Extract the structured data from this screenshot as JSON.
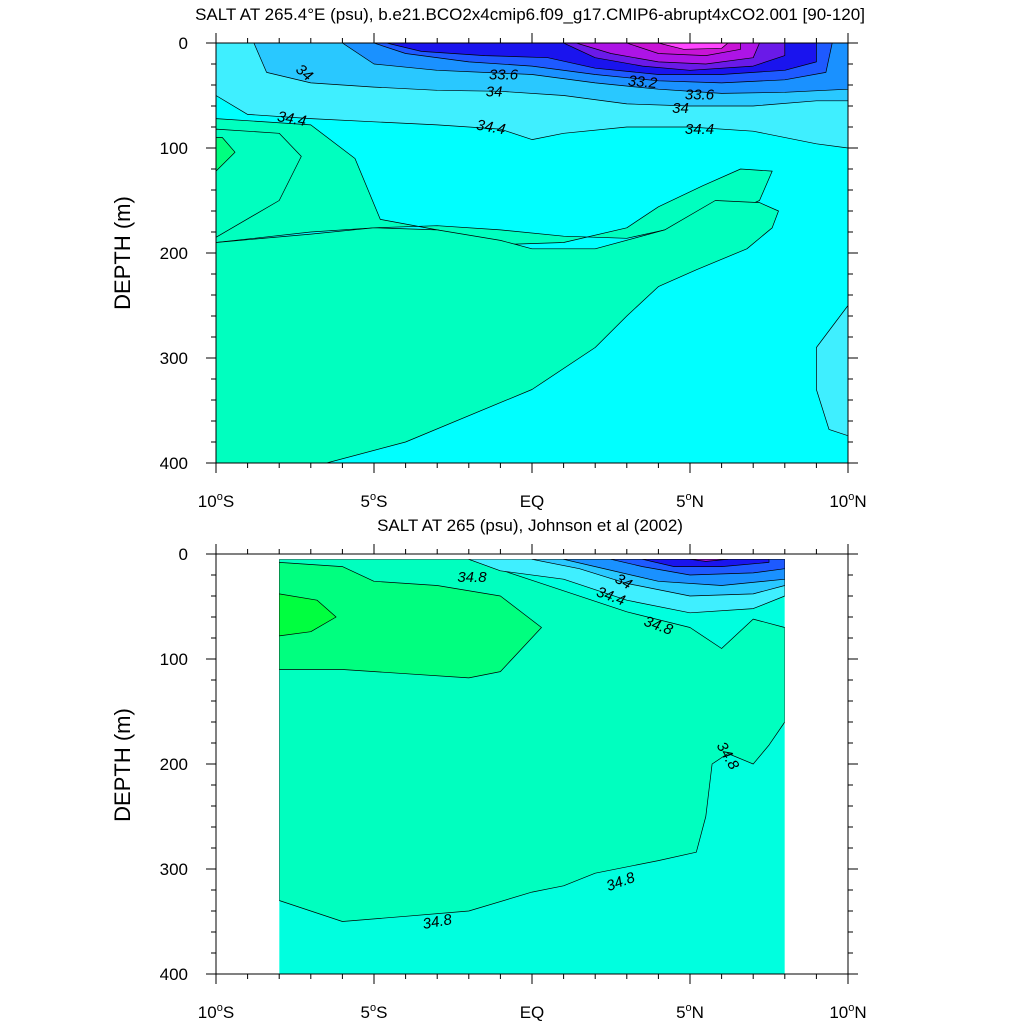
{
  "chart_data": [
    {
      "type": "contour",
      "title": "SALT AT 265.4°E (psu), b.e21.BCO2x4cmip6.f09_g17.CMIP6-abrupt4xCO2.001 [90-120]",
      "xlabel": "",
      "ylabel": "DEPTH (m)",
      "xlim": [
        -10,
        10
      ],
      "ylim": [
        400,
        0
      ],
      "x_ticks": [
        {
          "value": -10,
          "label": "10°S"
        },
        {
          "value": -5,
          "label": "5°S"
        },
        {
          "value": 0,
          "label": "EQ"
        },
        {
          "value": 5,
          "label": "5°N"
        },
        {
          "value": 10,
          "label": "10°N"
        }
      ],
      "y_ticks": [
        {
          "value": 0,
          "label": "0"
        },
        {
          "value": 100,
          "label": "100"
        },
        {
          "value": 200,
          "label": "200"
        },
        {
          "value": 300,
          "label": "300"
        },
        {
          "value": 400,
          "label": "400"
        }
      ],
      "background": "#00ffff",
      "regions": [
        {
          "color": "#3fefff",
          "points": [
            [
              -10,
              0
            ],
            [
              -10,
              50
            ],
            [
              -9,
              68
            ],
            [
              -7,
              72
            ],
            [
              -5,
              75
            ],
            [
              -3,
              78
            ],
            [
              -1,
              82
            ],
            [
              0,
              92
            ],
            [
              1,
              86
            ],
            [
              3,
              80
            ],
            [
              5,
              80
            ],
            [
              7,
              84
            ],
            [
              9,
              96
            ],
            [
              10,
              100
            ],
            [
              10,
              0
            ]
          ]
        },
        {
          "color": "#29c8ff",
          "points": [
            [
              -8.8,
              0
            ],
            [
              -8.4,
              28
            ],
            [
              -7,
              38
            ],
            [
              -5,
              42
            ],
            [
              -3,
              45
            ],
            [
              -1,
              46
            ],
            [
              1,
              50
            ],
            [
              3,
              58
            ],
            [
              5,
              60
            ],
            [
              7,
              60
            ],
            [
              9,
              55
            ],
            [
              10,
              55
            ],
            [
              10,
              0
            ]
          ]
        },
        {
          "color": "#1a91ff",
          "points": [
            [
              -6,
              0
            ],
            [
              -5,
              20
            ],
            [
              -3,
              26
            ],
            [
              0,
              30
            ],
            [
              2,
              38
            ],
            [
              4,
              44
            ],
            [
              6,
              48
            ],
            [
              8,
              47
            ],
            [
              10,
              44
            ],
            [
              10,
              0
            ]
          ]
        },
        {
          "color": "#1e5aff",
          "points": [
            [
              -5,
              0
            ],
            [
              -4,
              10
            ],
            [
              -2,
              18
            ],
            [
              0,
              22
            ],
            [
              2,
              30
            ],
            [
              4,
              36
            ],
            [
              6,
              38
            ],
            [
              8,
              35
            ],
            [
              9.3,
              28
            ],
            [
              9.5,
              0
            ]
          ]
        },
        {
          "color": "#1a14ee",
          "points": [
            [
              -4.6,
              0
            ],
            [
              -3.5,
              8
            ],
            [
              -1.5,
              12
            ],
            [
              0.5,
              14
            ],
            [
              2,
              24
            ],
            [
              4,
              30
            ],
            [
              6,
              30
            ],
            [
              8,
              26
            ],
            [
              9,
              18
            ],
            [
              9,
              0
            ]
          ]
        },
        {
          "color": "#6a1ae8",
          "points": [
            [
              1,
              0
            ],
            [
              2,
              14
            ],
            [
              3.5,
              22
            ],
            [
              5,
              26
            ],
            [
              7,
              22
            ],
            [
              8,
              12
            ],
            [
              8,
              0
            ]
          ]
        },
        {
          "color": "#ad14e6",
          "points": [
            [
              1.4,
              0
            ],
            [
              2.5,
              10
            ],
            [
              4,
              18
            ],
            [
              5.5,
              20
            ],
            [
              7,
              14
            ],
            [
              7.2,
              0
            ]
          ]
        },
        {
          "color": "#c814d6",
          "points": [
            [
              3,
              0
            ],
            [
              4,
              10
            ],
            [
              5.5,
              12
            ],
            [
              6.6,
              6
            ],
            [
              6.6,
              0
            ]
          ]
        },
        {
          "color": "#ff46ff",
          "points": [
            [
              4,
              0
            ],
            [
              4.8,
              6
            ],
            [
              6,
              5
            ],
            [
              6.2,
              0
            ]
          ]
        },
        {
          "color": "#00ffbf",
          "points": [
            [
              -10,
              190
            ],
            [
              -7,
              180
            ],
            [
              -5,
              176
            ],
            [
              -3,
              174
            ],
            [
              -1,
              178
            ],
            [
              1,
              184
            ],
            [
              3,
              186
            ],
            [
              4.5,
              176
            ],
            [
              6,
              166
            ],
            [
              7.2,
              150
            ],
            [
              7.6,
              122
            ],
            [
              6.6,
              120
            ],
            [
              5.4,
              136
            ],
            [
              4,
              156
            ],
            [
              3,
              176
            ],
            [
              1,
              190
            ],
            [
              -1,
              192
            ],
            [
              -3,
              178
            ],
            [
              -4.8,
              168
            ],
            [
              -5.6,
              110
            ],
            [
              -7,
              78
            ],
            [
              -10,
              72
            ]
          ]
        },
        {
          "color": "#00ffbf",
          "points": [
            [
              -10,
              185
            ],
            [
              -8,
              150
            ],
            [
              -7.3,
              108
            ],
            [
              -8,
              86
            ],
            [
              -10,
              82
            ]
          ]
        },
        {
          "color": "#00ff7f",
          "points": [
            [
              -10,
              122
            ],
            [
              -9.4,
              104
            ],
            [
              -9.8,
              90
            ],
            [
              -10,
              90
            ]
          ]
        },
        {
          "color": "#00ffbf",
          "points": [
            [
              -6.5,
              400
            ],
            [
              -4,
              380
            ],
            [
              0,
              330
            ],
            [
              2,
              290
            ],
            [
              3,
              260
            ],
            [
              4,
              232
            ],
            [
              5.2,
              216
            ],
            [
              6.8,
              196
            ],
            [
              7.6,
              176
            ],
            [
              7.8,
              160
            ],
            [
              7.2,
              152
            ],
            [
              5.8,
              150
            ],
            [
              4.2,
              178
            ],
            [
              2,
              196
            ],
            [
              0,
              196
            ],
            [
              -1,
              188
            ],
            [
              -3,
              178
            ],
            [
              -5,
              176
            ],
            [
              -7,
              182
            ],
            [
              -10,
              190
            ],
            [
              -10,
              400
            ]
          ]
        },
        {
          "color": "#3fefff",
          "points": [
            [
              10,
              250
            ],
            [
              9,
              290
            ],
            [
              9,
              330
            ],
            [
              9.4,
              368
            ],
            [
              10,
              374
            ]
          ]
        }
      ],
      "contour_labels": [
        {
          "text": "34",
          "x": -7.2,
          "y": 28,
          "angle": 40
        },
        {
          "text": "33.6",
          "x": -0.9,
          "y": 30,
          "angle": 0
        },
        {
          "text": "34",
          "x": -1.2,
          "y": 46,
          "angle": 0
        },
        {
          "text": "34.4",
          "x": -7.6,
          "y": 72,
          "angle": 10
        },
        {
          "text": "34.4",
          "x": -1.3,
          "y": 80,
          "angle": 10
        },
        {
          "text": "33.2",
          "x": 3.5,
          "y": 37,
          "angle": 5
        },
        {
          "text": "33.6",
          "x": 5.3,
          "y": 49,
          "angle": 0
        },
        {
          "text": "34",
          "x": 4.7,
          "y": 62,
          "angle": 0
        },
        {
          "text": "34.4",
          "x": 5.3,
          "y": 82,
          "angle": 0
        }
      ]
    },
    {
      "type": "contour",
      "title": "SALT AT 265 (psu), Johnson et al (2002)",
      "xlabel": "",
      "ylabel": "DEPTH (m)",
      "xlim": [
        -10,
        10
      ],
      "ylim": [
        400,
        0
      ],
      "x_ticks": [
        {
          "value": -10,
          "label": "10°S"
        },
        {
          "value": -5,
          "label": "5°S"
        },
        {
          "value": 0,
          "label": "EQ"
        },
        {
          "value": 5,
          "label": "5°N"
        },
        {
          "value": 10,
          "label": "10°N"
        }
      ],
      "y_ticks": [
        {
          "value": 0,
          "label": "0"
        },
        {
          "value": 100,
          "label": "100"
        },
        {
          "value": 200,
          "label": "200"
        },
        {
          "value": 300,
          "label": "300"
        },
        {
          "value": 400,
          "label": "400"
        }
      ],
      "data_extent": {
        "x": [
          -8,
          8
        ],
        "y": [
          5,
          400
        ]
      },
      "background": "#00ffdf",
      "regions": [
        {
          "color": "#00ffbf",
          "points": [
            [
              -8,
              330
            ],
            [
              -6,
              350
            ],
            [
              -4,
              345
            ],
            [
              -2,
              340
            ],
            [
              0,
              322
            ],
            [
              1,
              316
            ],
            [
              2,
              304
            ],
            [
              4,
              292
            ],
            [
              5.2,
              284
            ],
            [
              5.5,
              250
            ],
            [
              5.7,
              200
            ],
            [
              6.2,
              190
            ],
            [
              7,
              200
            ],
            [
              7.5,
              182
            ],
            [
              8,
              160
            ],
            [
              8,
              70
            ],
            [
              7,
              62
            ],
            [
              6,
              90
            ],
            [
              5,
              70
            ],
            [
              3,
              55
            ],
            [
              0,
              25
            ],
            [
              -1,
              15
            ],
            [
              -2,
              5
            ],
            [
              -8,
              5
            ]
          ]
        },
        {
          "color": "#00ff7f",
          "points": [
            [
              -8,
              110
            ],
            [
              -6,
              110
            ],
            [
              -4,
              114
            ],
            [
              -2,
              118
            ],
            [
              -1,
              112
            ],
            [
              0.3,
              70
            ],
            [
              -1,
              40
            ],
            [
              -3,
              30
            ],
            [
              -5,
              26
            ],
            [
              -6,
              12
            ],
            [
              -8,
              8
            ]
          ]
        },
        {
          "color": "#00ff3f",
          "points": [
            [
              -8,
              78
            ],
            [
              -7,
              74
            ],
            [
              -6.2,
              60
            ],
            [
              -6.8,
              44
            ],
            [
              -8,
              38
            ]
          ]
        },
        {
          "color": "#3fefff",
          "points": [
            [
              -2,
              5
            ],
            [
              -1,
              16
            ],
            [
              1,
              24
            ],
            [
              3,
              44
            ],
            [
              5,
              56
            ],
            [
              7,
              52
            ],
            [
              8,
              40
            ],
            [
              8,
              5
            ]
          ]
        },
        {
          "color": "#29c8ff",
          "points": [
            [
              0,
              5
            ],
            [
              1.5,
              14
            ],
            [
              3,
              28
            ],
            [
              5,
              40
            ],
            [
              7,
              38
            ],
            [
              8,
              30
            ],
            [
              8,
              5
            ]
          ]
        },
        {
          "color": "#1a91ff",
          "points": [
            [
              1,
              5
            ],
            [
              2,
              12
            ],
            [
              4,
              26
            ],
            [
              6,
              30
            ],
            [
              8,
              24
            ],
            [
              8,
              5
            ]
          ]
        },
        {
          "color": "#1e5aff",
          "points": [
            [
              2.5,
              5
            ],
            [
              3.5,
              12
            ],
            [
              5,
              20
            ],
            [
              7,
              18
            ],
            [
              8,
              14
            ],
            [
              8,
              5
            ]
          ]
        },
        {
          "color": "#1a14ee",
          "points": [
            [
              3.5,
              5
            ],
            [
              4.5,
              12
            ],
            [
              6,
              12
            ],
            [
              7.5,
              8
            ],
            [
              7.5,
              5
            ]
          ]
        },
        {
          "color": "#ad14e6",
          "points": [
            [
              5,
              5
            ],
            [
              5.5,
              7
            ],
            [
              6.2,
              5
            ]
          ]
        }
      ],
      "contour_labels": [
        {
          "text": "34.8",
          "x": -1.9,
          "y": 22,
          "angle": 0
        },
        {
          "text": "34",
          "x": 2.9,
          "y": 26,
          "angle": 30
        },
        {
          "text": "34.4",
          "x": 2.5,
          "y": 40,
          "angle": 20
        },
        {
          "text": "34.8",
          "x": 4,
          "y": 68,
          "angle": 20
        },
        {
          "text": "34.8",
          "x": 6.2,
          "y": 192,
          "angle": 60
        },
        {
          "text": "34.8",
          "x": 2.8,
          "y": 312,
          "angle": -20
        },
        {
          "text": "34.8",
          "x": -3,
          "y": 350,
          "angle": -10
        }
      ]
    }
  ]
}
